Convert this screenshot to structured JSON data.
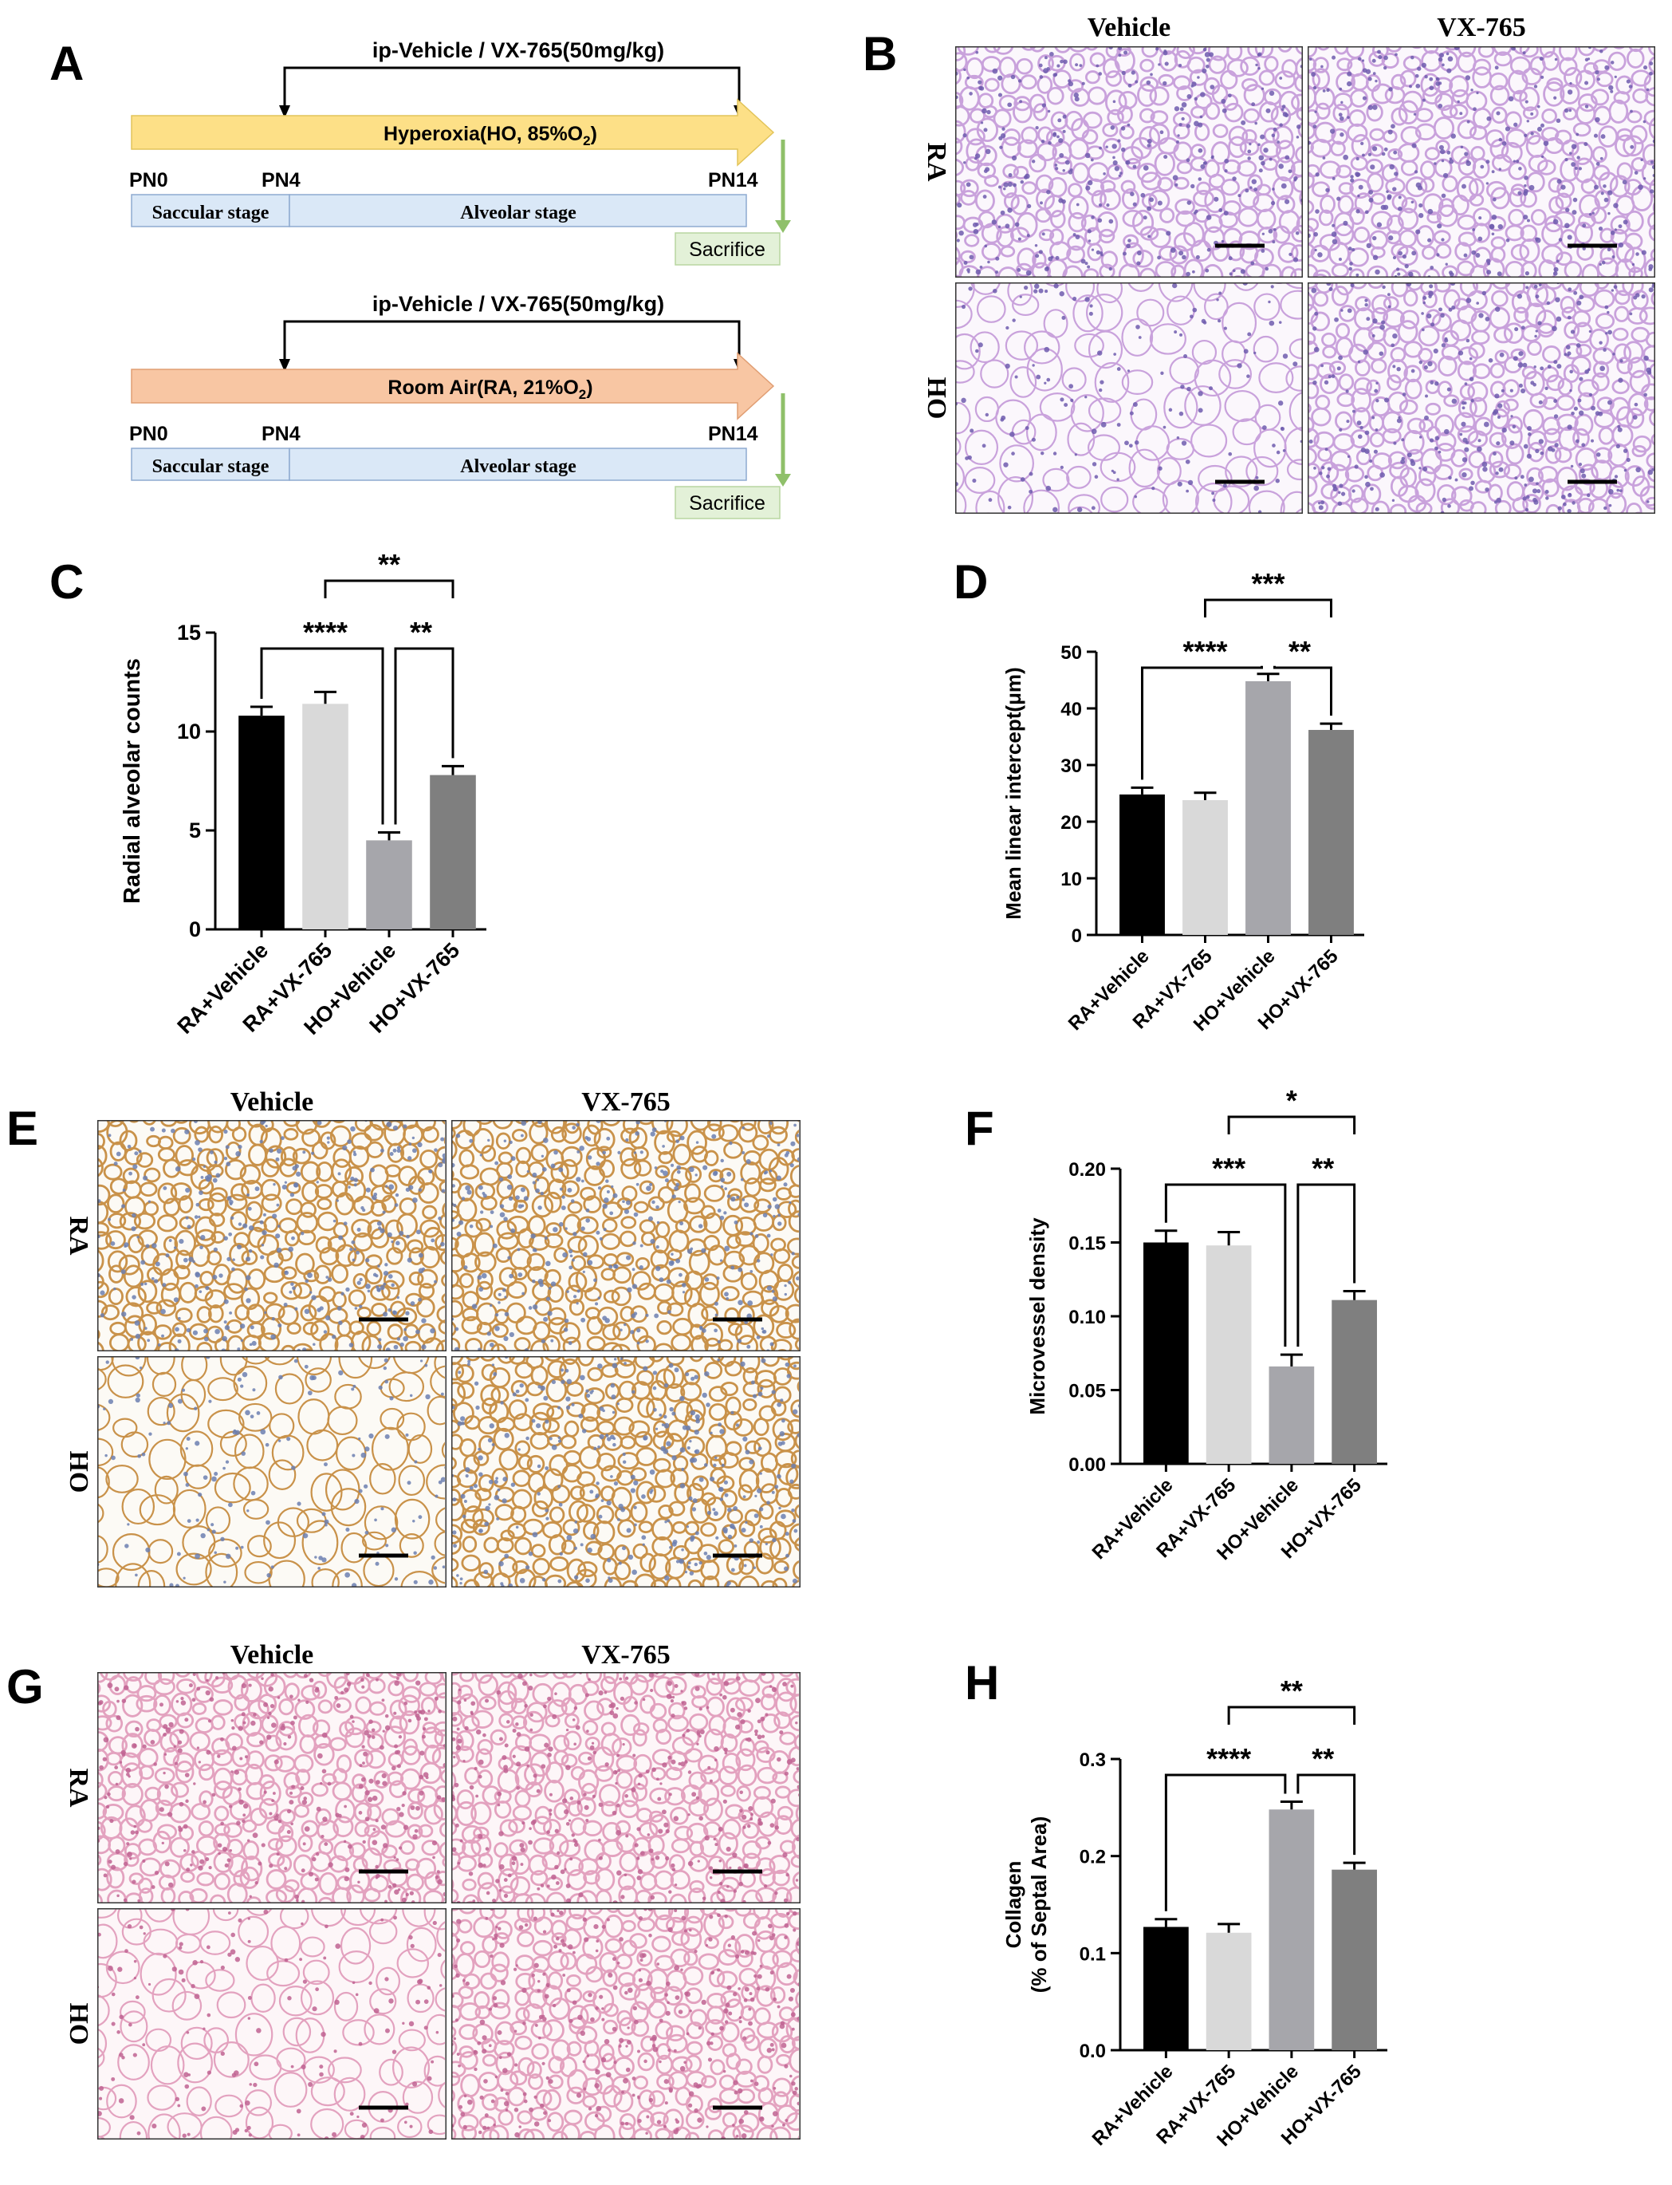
{
  "panel_letters": [
    "A",
    "B",
    "C",
    "D",
    "E",
    "F",
    "G",
    "H"
  ],
  "timelines": [
    {
      "treatment_label": "ip-Vehicle / VX-765(50mg/kg)",
      "condition_label": "Hyperoxia(HO, 85%O",
      "condition_sub": "2",
      "condition_end": ")",
      "arrow_color": "#fde087",
      "pn_start": "PN0",
      "pn_mid": "PN4",
      "pn_end": "PN14",
      "stage1": "Saccular stage",
      "stage2": "Alveolar stage",
      "sacrifice": "Sacrifice"
    },
    {
      "treatment_label": "ip-Vehicle / VX-765(50mg/kg)",
      "condition_label": "Room Air(RA, 21%O",
      "condition_sub": "2",
      "condition_end": ")",
      "arrow_color": "#f8c6a3",
      "pn_start": "PN0",
      "pn_mid": "PN4",
      "pn_end": "PN14",
      "stage1": "Saccular stage",
      "stage2": "Alveolar stage",
      "sacrifice": "Sacrifice"
    }
  ],
  "micrographs": [
    {
      "col_labels": [
        "Vehicle",
        "VX-765"
      ],
      "row_labels": [
        "RA",
        "HO"
      ],
      "stain": "he"
    },
    {
      "col_labels": [
        "Vehicle",
        "VX-765"
      ],
      "row_labels": [
        "RA",
        "HO"
      ],
      "stain": "ihc"
    },
    {
      "col_labels": [
        "Vehicle",
        "VX-765"
      ],
      "row_labels": [
        "RA",
        "HO"
      ],
      "stain": "sirius"
    }
  ],
  "chart_data": [
    {
      "type": "bar",
      "panel": "C",
      "ylabel": "Radial alveolar counts",
      "categories": [
        "RA+Vehicle",
        "RA+VX-765",
        "HO+Vehicle",
        "HO+VX-765"
      ],
      "values": [
        10.8,
        11.4,
        4.5,
        7.8
      ],
      "errors": [
        0.45,
        0.6,
        0.4,
        0.45
      ],
      "colors": [
        "#000000",
        "#d9d9d9",
        "#a6a6ab",
        "#7f7f7f"
      ],
      "ylim": [
        0,
        15
      ],
      "yticks": [
        "0",
        "5",
        "10",
        "15"
      ],
      "ytick_values": [
        0,
        5,
        10,
        15
      ],
      "significance": [
        {
          "from": 0,
          "to": 2,
          "label": "****"
        },
        {
          "from": 2,
          "to": 3,
          "label": "**"
        },
        {
          "from": 1,
          "to": 3,
          "label": "**"
        }
      ]
    },
    {
      "type": "bar",
      "panel": "D",
      "ylabel": "Mean linear intercept(μm)",
      "categories": [
        "RA+Vehicle",
        "RA+VX-765",
        "HO+Vehicle",
        "HO+VX-765"
      ],
      "values": [
        24.8,
        23.8,
        44.8,
        36.2
      ],
      "errors": [
        1.2,
        1.3,
        1.3,
        1.1
      ],
      "colors": [
        "#000000",
        "#d9d9d9",
        "#a6a6ab",
        "#7f7f7f"
      ],
      "ylim": [
        0,
        50
      ],
      "yticks": [
        "0",
        "10",
        "20",
        "30",
        "40",
        "50"
      ],
      "ytick_values": [
        0,
        10,
        20,
        30,
        40,
        50
      ],
      "significance": [
        {
          "from": 0,
          "to": 2,
          "label": "****"
        },
        {
          "from": 2,
          "to": 3,
          "label": "**"
        },
        {
          "from": 1,
          "to": 3,
          "label": "***"
        }
      ]
    },
    {
      "type": "bar",
      "panel": "F",
      "ylabel": "Microvessel density",
      "categories": [
        "RA+Vehicle",
        "RA+VX-765",
        "HO+Vehicle",
        "HO+VX-765"
      ],
      "values": [
        0.15,
        0.148,
        0.066,
        0.111
      ],
      "errors": [
        0.008,
        0.009,
        0.008,
        0.006
      ],
      "colors": [
        "#000000",
        "#d9d9d9",
        "#a6a6ab",
        "#7f7f7f"
      ],
      "ylim": [
        0,
        0.2
      ],
      "yticks": [
        "0.00",
        "0.05",
        "0.10",
        "0.15",
        "0.20"
      ],
      "ytick_values": [
        0,
        0.05,
        0.1,
        0.15,
        0.2
      ],
      "significance": [
        {
          "from": 0,
          "to": 2,
          "label": "***"
        },
        {
          "from": 2,
          "to": 3,
          "label": "**"
        },
        {
          "from": 1,
          "to": 3,
          "label": "*"
        }
      ]
    },
    {
      "type": "bar",
      "panel": "H",
      "ylabel": "Collagen",
      "ylabel2": "(% of Septal Area)",
      "categories": [
        "RA+Vehicle",
        "RA+VX-765",
        "HO+Vehicle",
        "HO+VX-765"
      ],
      "values": [
        0.127,
        0.121,
        0.248,
        0.186
      ],
      "errors": [
        0.008,
        0.009,
        0.008,
        0.007
      ],
      "colors": [
        "#000000",
        "#d9d9d9",
        "#a6a6ab",
        "#7f7f7f"
      ],
      "ylim": [
        0,
        0.3
      ],
      "yticks": [
        "0.0",
        "0.1",
        "0.2",
        "0.3"
      ],
      "ytick_values": [
        0,
        0.1,
        0.2,
        0.3
      ],
      "significance": [
        {
          "from": 0,
          "to": 2,
          "label": "****"
        },
        {
          "from": 2,
          "to": 3,
          "label": "**"
        },
        {
          "from": 1,
          "to": 3,
          "label": "**"
        }
      ]
    }
  ]
}
